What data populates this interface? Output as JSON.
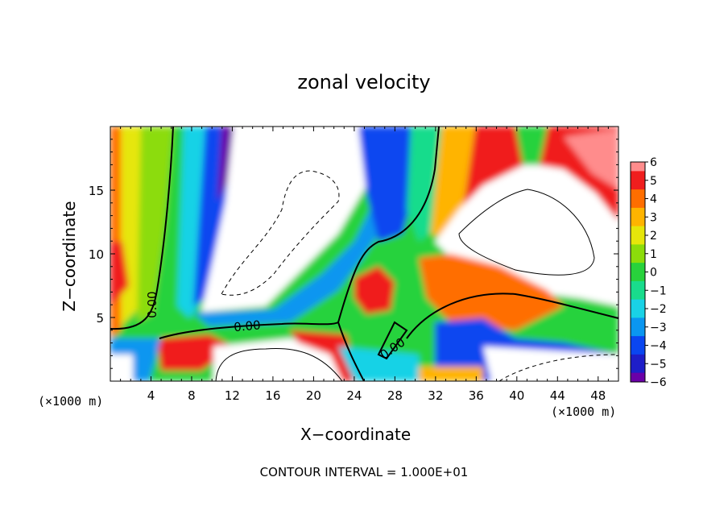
{
  "chart_data": {
    "type": "heatmap",
    "title": "zonal velocity",
    "xlabel": "X−coordinate",
    "ylabel": "Z−coordinate",
    "x_unit": "(×1000 m)",
    "footnote": "CONTOUR INTERVAL = 1.000E+01",
    "xlim": [
      0,
      50
    ],
    "ylim": [
      0,
      20
    ],
    "xticks": [
      4,
      8,
      12,
      16,
      20,
      24,
      28,
      32,
      36,
      40,
      44,
      48
    ],
    "xtick_labels": [
      "4",
      "8",
      "12",
      "16",
      "20",
      "24",
      "28",
      "32",
      "36",
      "40",
      "44",
      "48"
    ],
    "yticks": [
      5,
      10,
      15
    ],
    "ytick_labels": [
      "5",
      "10",
      "15"
    ],
    "colorbar_values": [
      -6,
      -5,
      -4,
      -3,
      -2,
      -1,
      0,
      1,
      2,
      3,
      4,
      5,
      6
    ],
    "colorbar_labels": [
      "6",
      "5",
      "4",
      "3",
      "2",
      "1",
      "0",
      "−1",
      "−2",
      "−3",
      "−4",
      "−5",
      "−6"
    ],
    "contour_labels": [
      {
        "text": "0.00",
        "x": 4.5,
        "y": 6.0
      },
      {
        "text": "0.00",
        "x": 13.5,
        "y": 4.0
      },
      {
        "text": "0.00",
        "x": 28.0,
        "y": 2.3
      }
    ],
    "colors": {
      "neg6": "#6a00a8",
      "neg5": "#1e1ec8",
      "neg4": "#0a46f0",
      "neg3": "#0a96f0",
      "neg2": "#19d2e6",
      "neg1": "#19dc8c",
      "zero": "#28d23c",
      "pos1": "#8cdc0a",
      "pos2": "#e6e60a",
      "pos3": "#ffb400",
      "pos4": "#ff6e00",
      "pos5": "#f01e1e",
      "pos6": "#ff8c8c"
    }
  }
}
